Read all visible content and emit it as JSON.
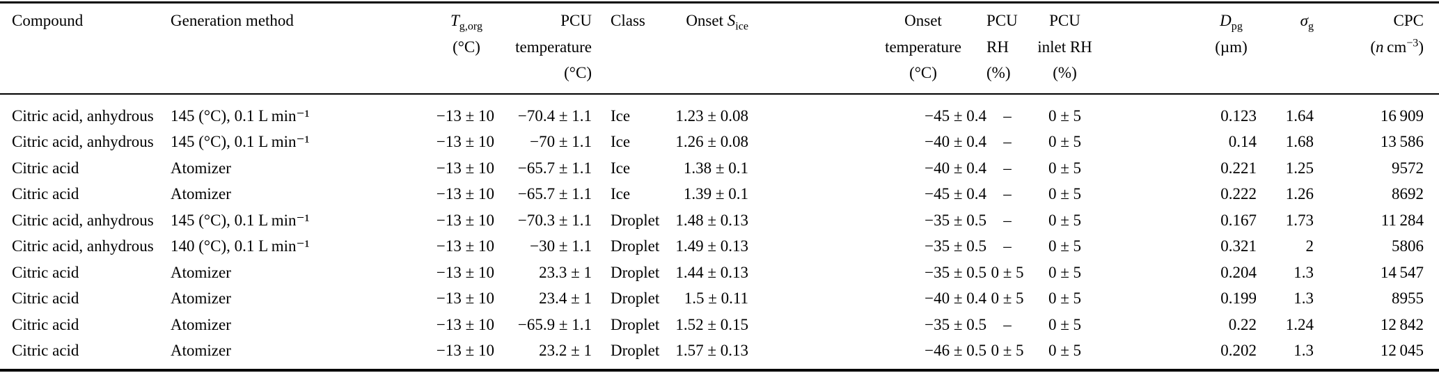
{
  "page": {
    "background": "#ffffff",
    "text_color": "#000000",
    "rule_color": "#000000"
  },
  "table": {
    "columns": [
      {
        "id": "compound",
        "label": "Compound",
        "header_html": "Compound"
      },
      {
        "id": "generation-method",
        "label": "Generation method",
        "header_html": "Generation method"
      },
      {
        "id": "tg-org",
        "label": "Tg,org (°C)",
        "header_html": "<i>T</i><sub>g,org</sub><br>(°C)"
      },
      {
        "id": "pcu-temperature",
        "label": "PCU temperature (°C)",
        "header_html": "PCU<br>temperature<br>(°C)"
      },
      {
        "id": "class",
        "label": "Class",
        "header_html": "Class"
      },
      {
        "id": "onset-s-ice",
        "label": "Onset Sice",
        "header_html": "Onset <i>S</i><sub>ice</sub>"
      },
      {
        "id": "onset-temperature",
        "label": "Onset temperature (°C)",
        "header_html": "Onset<br>temperature<br>(°C)"
      },
      {
        "id": "pcu-rh",
        "label": "PCU RH (%)",
        "header_html": "PCU<br>RH<br>(%)"
      },
      {
        "id": "pcu-inlet-rh",
        "label": "PCU inlet RH (%)",
        "header_html": "PCU<br>inlet RH<br>(%)"
      },
      {
        "id": "d-pg",
        "label": "Dpg (µm)",
        "header_html": "<i>D</i><sub>pg</sub><br>(µm)"
      },
      {
        "id": "sigma-g",
        "label": "σg",
        "header_html": "<i>σ</i><sub>g</sub>"
      },
      {
        "id": "cpc",
        "label": "CPC (n cm−3)",
        "header_html": "CPC<br>(<i>n</i> cm<sup>−3</sup>)"
      }
    ],
    "rows": [
      [
        "Citric acid, anhydrous",
        "145 (°C), 0.1 L min⁻¹",
        "−13 ± 10",
        "−70.4 ± 1.1",
        "Ice",
        "1.23 ± 0.08",
        "−45 ± 0.4",
        "–",
        "0 ± 5",
        "0.123",
        "1.64",
        "16 909"
      ],
      [
        "Citric acid, anhydrous",
        "145 (°C), 0.1 L min⁻¹",
        "−13 ± 10",
        "−70 ± 1.1",
        "Ice",
        "1.26 ± 0.08",
        "−40 ± 0.4",
        "–",
        "0 ± 5",
        "0.14",
        "1.68",
        "13 586"
      ],
      [
        "Citric acid",
        "Atomizer",
        "−13 ± 10",
        "−65.7 ± 1.1",
        "Ice",
        "1.38 ± 0.1",
        "−40 ± 0.4",
        "–",
        "0 ± 5",
        "0.221",
        "1.25",
        "9572"
      ],
      [
        "Citric acid",
        "Atomizer",
        "−13 ± 10",
        "−65.7 ± 1.1",
        "Ice",
        "1.39 ± 0.1",
        "−45 ± 0.4",
        "–",
        "0 ± 5",
        "0.222",
        "1.26",
        "8692"
      ],
      [
        "Citric acid, anhydrous",
        "145 (°C), 0.1 L min⁻¹",
        "−13 ± 10",
        "−70.3 ± 1.1",
        "Droplet",
        "1.48 ± 0.13",
        "−35 ± 0.5",
        "–",
        "0 ± 5",
        "0.167",
        "1.73",
        "11 284"
      ],
      [
        "Citric acid, anhydrous",
        "140 (°C), 0.1 L min⁻¹",
        "−13 ± 10",
        "−30 ± 1.1",
        "Droplet",
        "1.49 ± 0.13",
        "−35 ± 0.5",
        "–",
        "0 ± 5",
        "0.321",
        "2",
        "5806"
      ],
      [
        "Citric acid",
        "Atomizer",
        "−13 ± 10",
        "23.3 ± 1",
        "Droplet",
        "1.44 ± 0.13",
        "−35 ± 0.5",
        "0 ± 5",
        "0 ± 5",
        "0.204",
        "1.3",
        "14 547"
      ],
      [
        "Citric acid",
        "Atomizer",
        "−13 ± 10",
        "23.4 ± 1",
        "Droplet",
        "1.5 ± 0.11",
        "−40 ± 0.4",
        "0 ± 5",
        "0 ± 5",
        "0.199",
        "1.3",
        "8955"
      ],
      [
        "Citric acid",
        "Atomizer",
        "−13 ± 10",
        "−65.9 ± 1.1",
        "Droplet",
        "1.52 ± 0.15",
        "−35 ± 0.5",
        "–",
        "0 ± 5",
        "0.22",
        "1.24",
        "12 842"
      ],
      [
        "Citric acid",
        "Atomizer",
        "−13 ± 10",
        "23.2 ± 1",
        "Droplet",
        "1.57 ± 0.13",
        "−46 ± 0.5",
        "0 ± 5",
        "0 ± 5",
        "0.202",
        "1.3",
        "12 045"
      ]
    ]
  }
}
